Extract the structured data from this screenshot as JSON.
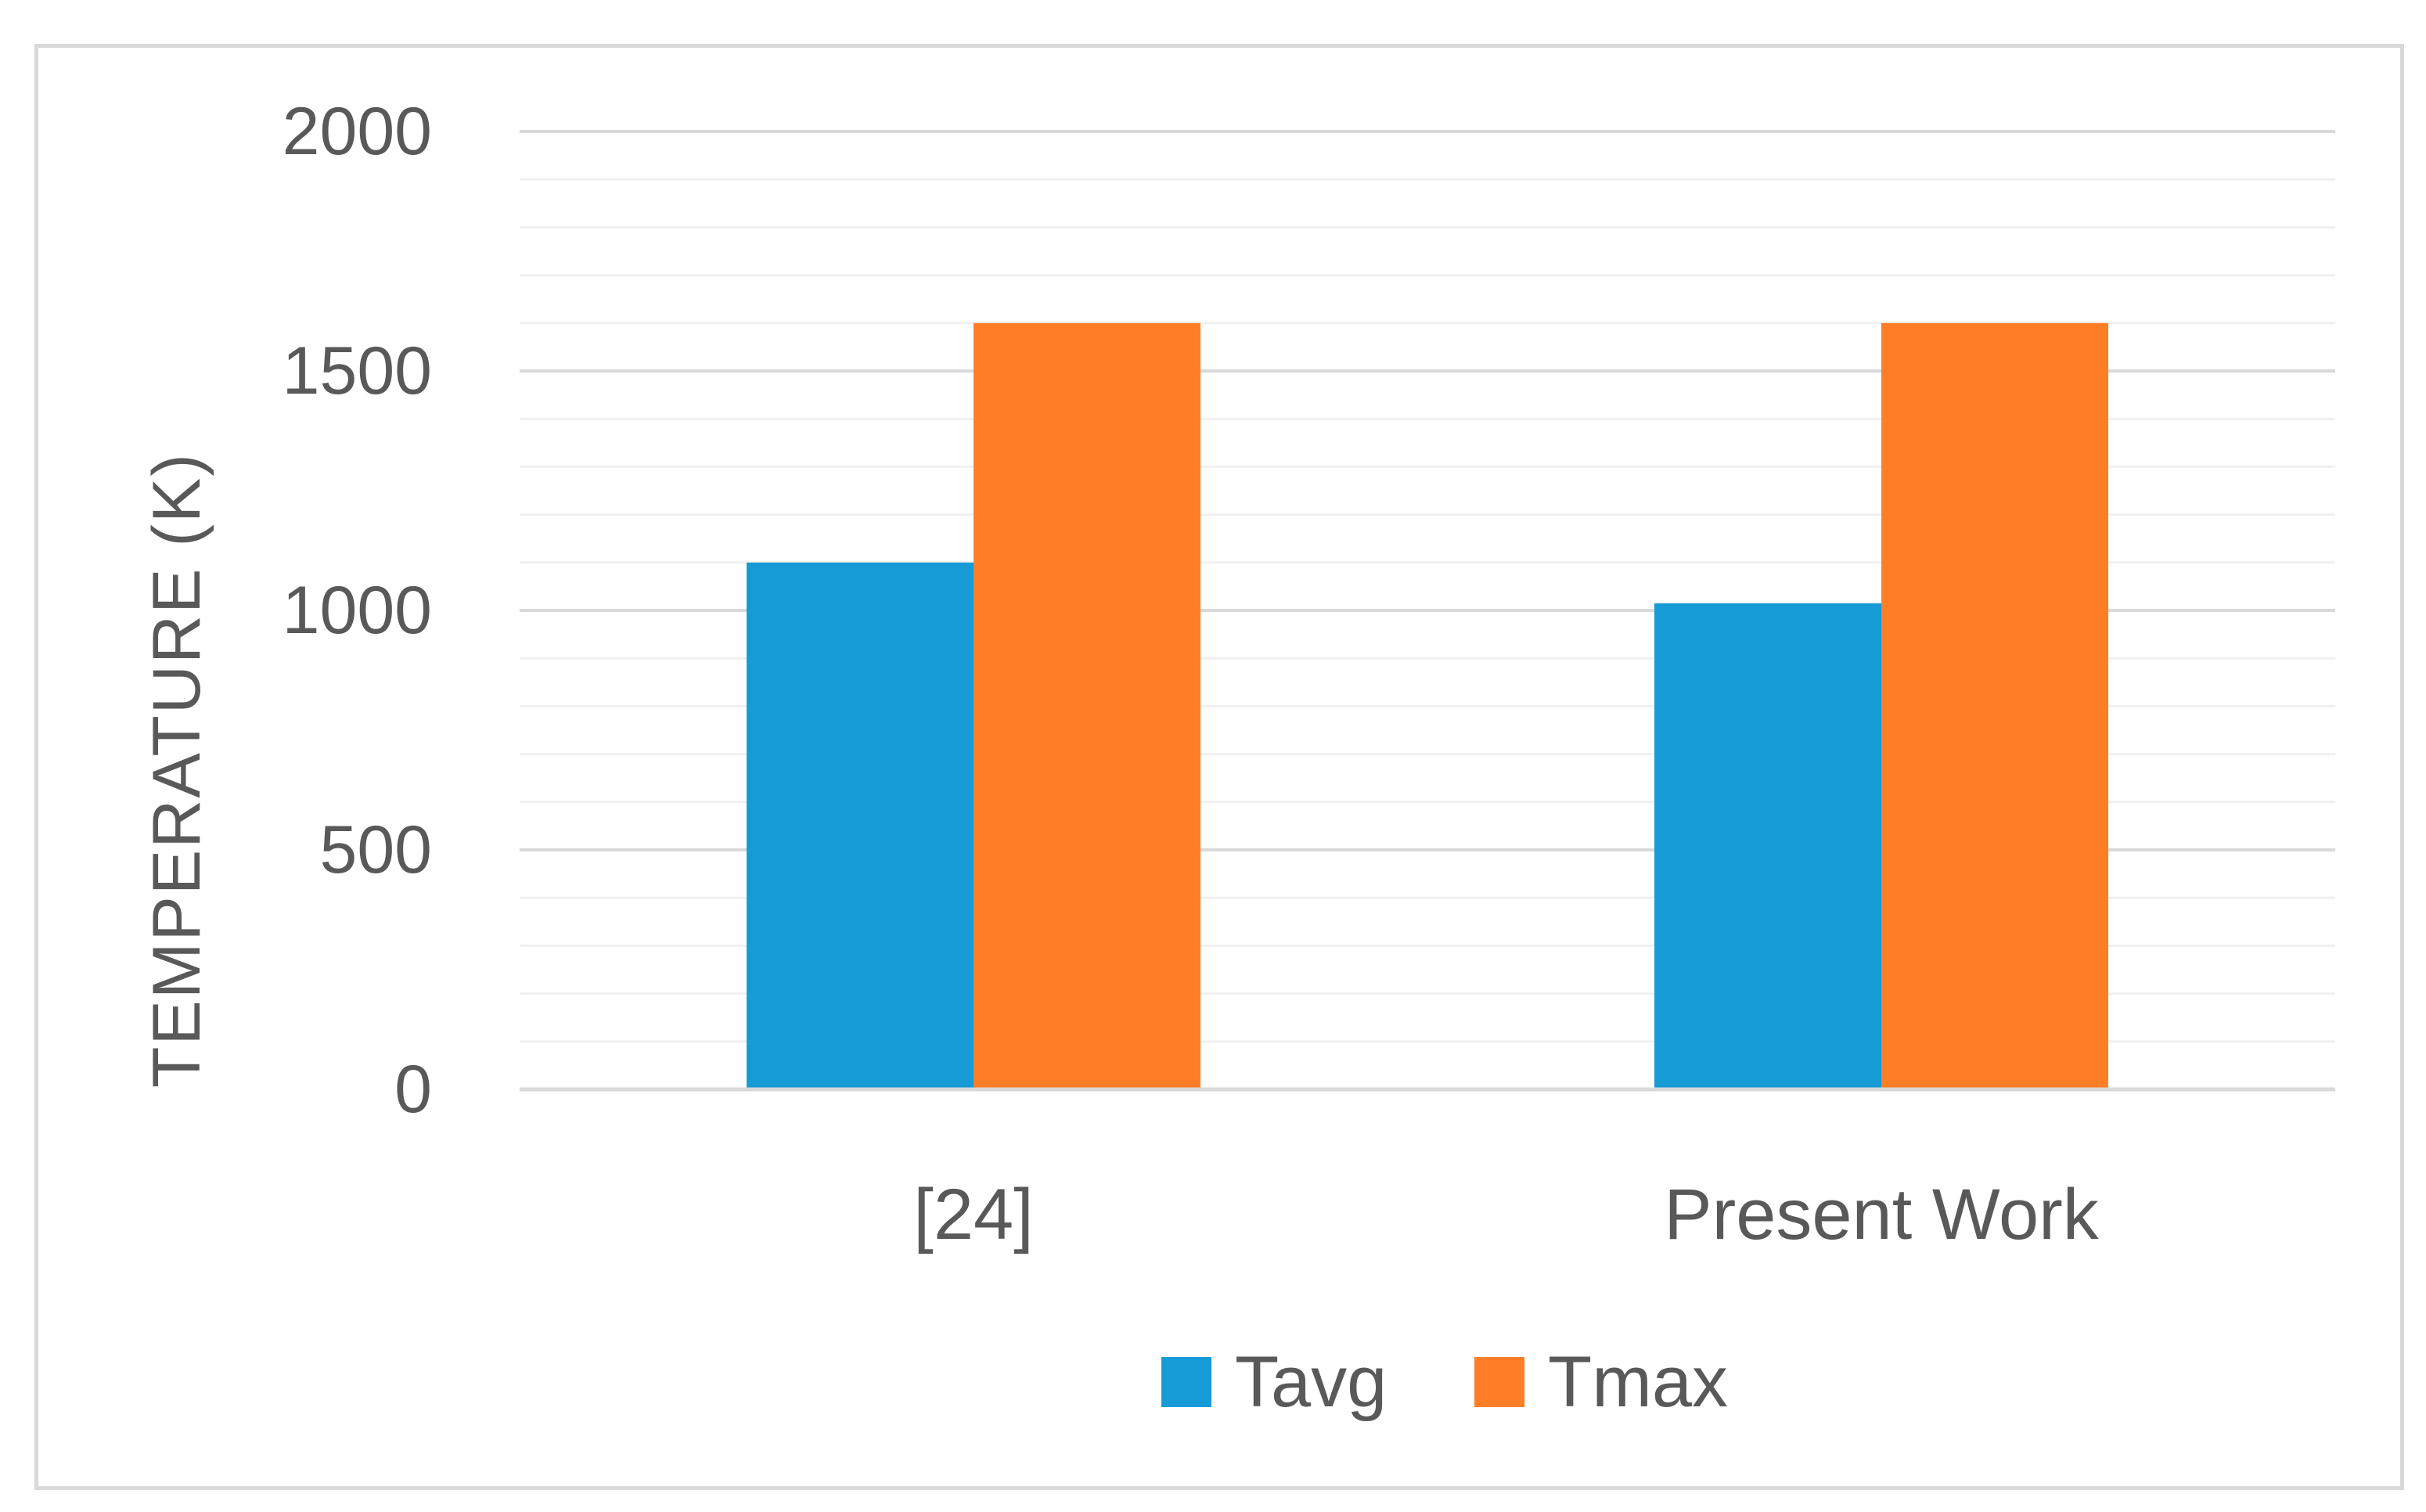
{
  "chart_data": {
    "type": "bar",
    "categories": [
      "[24]",
      "Present Work"
    ],
    "series": [
      {
        "name": "Tavg",
        "values": [
          1100,
          1015
        ],
        "color": "#179BD7"
      },
      {
        "name": "Tmax",
        "values": [
          1600,
          1600
        ],
        "color": "#FD7E26"
      }
    ],
    "title": "",
    "xlabel": "",
    "ylabel": "TEMPERATURE (K)",
    "ylim": [
      0,
      2000
    ],
    "yticks": [
      0,
      500,
      1000,
      1500,
      2000
    ],
    "ytick_labels": [
      "0",
      "500",
      "1000",
      "1500",
      "2000"
    ],
    "minor_grid_step": 100,
    "grid": true,
    "legend": "bottom"
  }
}
